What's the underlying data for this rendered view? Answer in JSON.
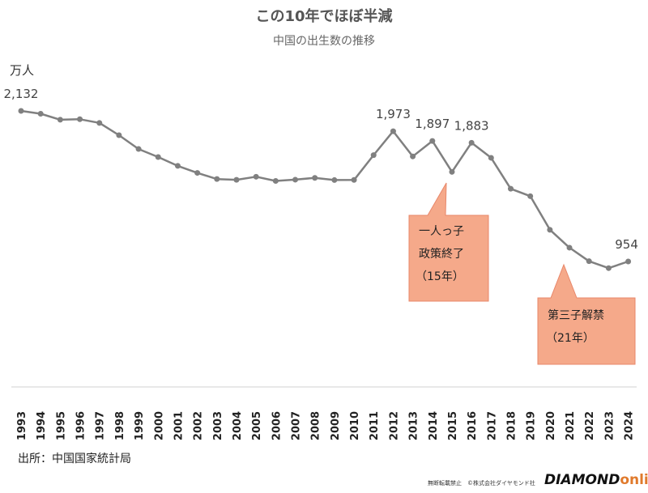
{
  "header": {
    "title": "この10年でほぼ半減",
    "subtitle": "中国の出生数の推移",
    "unit": "万人"
  },
  "footer": {
    "source": "出所：中国国家統計局",
    "copyright": "無断転載禁止　©株式会社ダイヤモンド社",
    "brand_main": "DIAMOND",
    "brand_sub": "online"
  },
  "colors": {
    "line": "#808080",
    "callout_fill": "#f5a98a",
    "callout_stroke": "#e8876a",
    "brand_accent": "#e07a2c"
  },
  "chart_data": {
    "type": "line",
    "title": "この10年でほぼ半減",
    "subtitle": "中国の出生数の推移",
    "ylabel": "万人",
    "xlabel": "",
    "grid": false,
    "legend": "none",
    "ylim": [
      0,
      2200
    ],
    "x": [
      1993,
      1994,
      1995,
      1996,
      1997,
      1998,
      1999,
      2000,
      2001,
      2002,
      2003,
      2004,
      2005,
      2006,
      2007,
      2008,
      2009,
      2010,
      2011,
      2012,
      2013,
      2014,
      2015,
      2016,
      2017,
      2018,
      2019,
      2020,
      2021,
      2022,
      2023,
      2024
    ],
    "x_labels": [
      "1993",
      "1994",
      "1995",
      "1996",
      "1997",
      "1998",
      "1999",
      "2000",
      "2001",
      "2002",
      "2003",
      "2004",
      "2005",
      "2006",
      "2007",
      "2008",
      "2009",
      "2010",
      "2011",
      "2012",
      "2013",
      "2014",
      "2015",
      "2016",
      "2017",
      "2018",
      "2019",
      "2020",
      "2021",
      "2022",
      "2023",
      "2024"
    ],
    "series": [
      {
        "values": [
          2132,
          2110,
          2063,
          2067,
          2038,
          1942,
          1834,
          1771,
          1702,
          1647,
          1599,
          1593,
          1617,
          1584,
          1594,
          1608,
          1591,
          1592,
          1786,
          1973,
          1776,
          1897,
          1655,
          1883,
          1765,
          1523,
          1465,
          1202,
          1062,
          956,
          902,
          954
        ]
      }
    ],
    "data_labels": [
      {
        "x": 1993,
        "text": "2,132"
      },
      {
        "x": 2012,
        "text": "1,973"
      },
      {
        "x": 2014,
        "text": "1,897"
      },
      {
        "x": 2016,
        "text": "1,883"
      },
      {
        "x": 2024,
        "text": "954"
      }
    ],
    "annotations": [
      {
        "x": 2015,
        "lines": [
          "一人っ子",
          "政策終了",
          "（15年）"
        ]
      },
      {
        "x": 2021,
        "lines": [
          "第三子解禁",
          "（21年）"
        ]
      }
    ]
  }
}
